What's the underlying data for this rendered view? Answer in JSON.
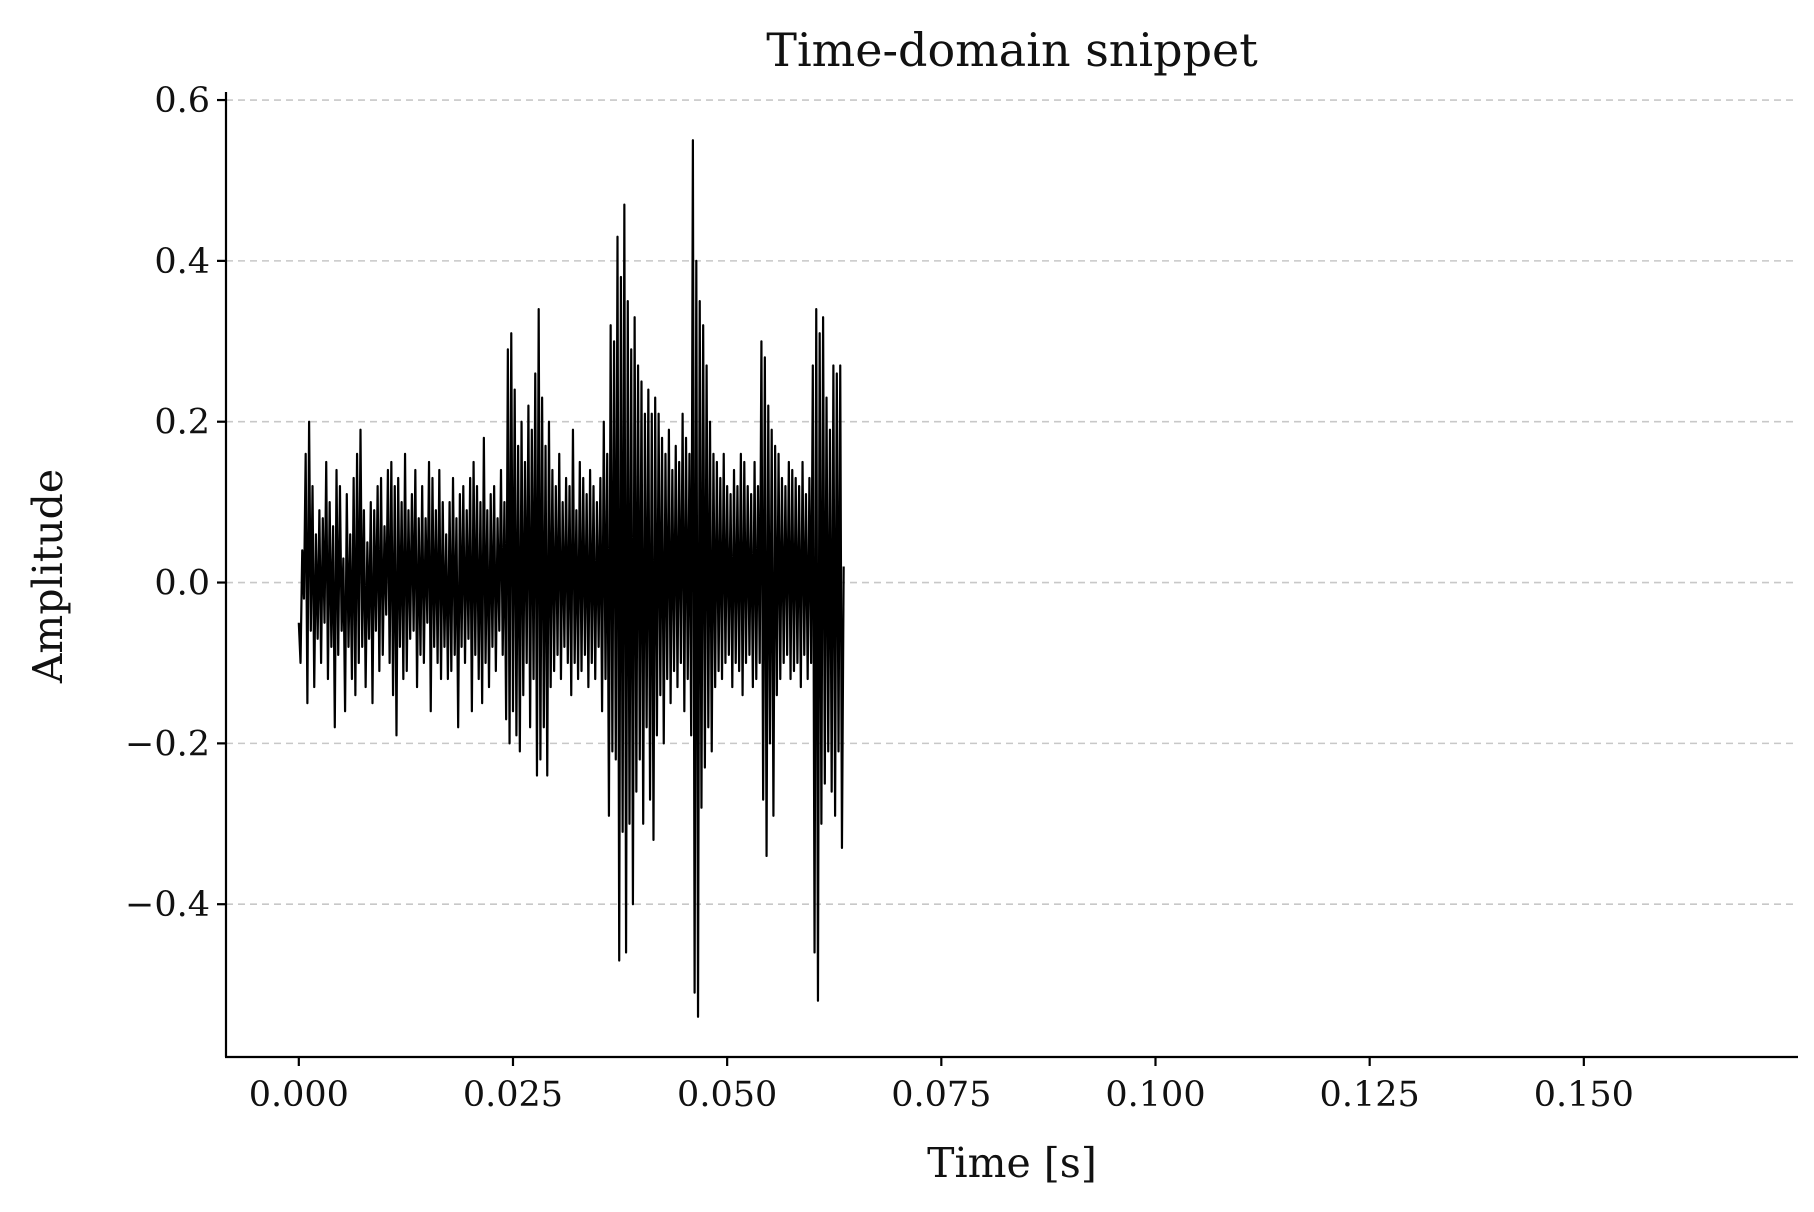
{
  "chart_data": {
    "type": "line",
    "title": "Time-domain snippet",
    "xlabel": "Time [s]",
    "ylabel": "Amplitude",
    "xlim": [
      -0.0085,
      0.175
    ],
    "ylim": [
      -0.59,
      0.61
    ],
    "x_ticks": [
      0.0,
      0.025,
      0.05,
      0.075,
      0.1,
      0.125,
      0.15
    ],
    "x_tick_labels": [
      "0.000",
      "0.025",
      "0.050",
      "0.075",
      "0.100",
      "0.125",
      "0.150"
    ],
    "y_ticks": [
      -0.4,
      -0.2,
      0.0,
      0.2,
      0.4,
      0.6
    ],
    "y_tick_labels": [
      "−0.4",
      "−0.2",
      "0.0",
      "0.2",
      "0.4",
      "0.6"
    ],
    "grid": "y-dashed",
    "color": "#000000",
    "series": [
      {
        "sample_interval": 0.0002,
        "y": [
          -0.05,
          -0.1,
          0.04,
          -0.02,
          0.16,
          -0.15,
          0.2,
          -0.06,
          0.12,
          -0.13,
          0.06,
          -0.07,
          0.09,
          -0.1,
          0.08,
          -0.05,
          0.15,
          -0.12,
          0.1,
          -0.08,
          0.07,
          -0.18,
          0.14,
          -0.09,
          0.12,
          -0.06,
          0.03,
          -0.16,
          0.11,
          -0.08,
          0.06,
          -0.12,
          0.13,
          -0.14,
          0.16,
          -0.1,
          0.19,
          -0.08,
          0.09,
          -0.13,
          0.05,
          -0.07,
          0.1,
          -0.15,
          0.09,
          -0.06,
          0.12,
          -0.11,
          0.13,
          -0.09,
          0.07,
          -0.04,
          0.14,
          -0.1,
          0.15,
          -0.14,
          0.12,
          -0.19,
          0.13,
          -0.08,
          0.1,
          -0.12,
          0.16,
          -0.11,
          0.09,
          -0.07,
          0.11,
          -0.06,
          0.14,
          -0.13,
          0.08,
          -0.09,
          0.12,
          -0.1,
          0.08,
          -0.05,
          0.15,
          -0.16,
          0.13,
          -0.08,
          0.09,
          -0.1,
          0.14,
          -0.12,
          0.1,
          -0.08,
          0.06,
          -0.12,
          0.1,
          -0.11,
          0.13,
          -0.09,
          0.08,
          -0.18,
          0.11,
          -0.08,
          0.12,
          -0.1,
          0.09,
          -0.07,
          0.13,
          -0.16,
          0.15,
          -0.09,
          0.12,
          -0.12,
          0.1,
          -0.15,
          0.18,
          -0.1,
          0.09,
          -0.13,
          0.11,
          -0.08,
          0.12,
          -0.11,
          0.08,
          -0.06,
          0.14,
          -0.09,
          0.1,
          -0.17,
          0.29,
          -0.2,
          0.31,
          -0.16,
          0.24,
          -0.19,
          0.17,
          -0.21,
          0.2,
          -0.14,
          0.15,
          -0.1,
          0.22,
          -0.18,
          0.19,
          -0.12,
          0.26,
          -0.24,
          0.34,
          -0.22,
          0.23,
          -0.18,
          0.17,
          -0.24,
          0.2,
          -0.13,
          0.14,
          -0.11,
          0.12,
          -0.09,
          0.16,
          -0.12,
          0.1,
          -0.08,
          0.13,
          -0.1,
          0.12,
          -0.14,
          0.19,
          -0.1,
          0.09,
          -0.12,
          0.15,
          -0.11,
          0.13,
          -0.09,
          0.11,
          -0.13,
          0.14,
          -0.1,
          0.12,
          -0.12,
          0.1,
          -0.08,
          0.13,
          -0.16,
          0.2,
          -0.12,
          0.16,
          -0.29,
          0.32,
          -0.21,
          0.3,
          -0.22,
          0.43,
          -0.47,
          0.38,
          -0.31,
          0.47,
          -0.46,
          0.35,
          -0.3,
          0.29,
          -0.4,
          0.33,
          -0.26,
          0.27,
          -0.22,
          0.25,
          -0.3,
          0.21,
          -0.18,
          0.24,
          -0.27,
          0.21,
          -0.32,
          0.23,
          -0.19,
          0.21,
          -0.14,
          0.18,
          -0.2,
          0.16,
          -0.12,
          0.19,
          -0.15,
          0.14,
          -0.11,
          0.17,
          -0.13,
          0.15,
          -0.1,
          0.21,
          -0.16,
          0.18,
          -0.12,
          0.16,
          -0.19,
          0.55,
          -0.51,
          0.4,
          -0.54,
          0.35,
          -0.28,
          0.32,
          -0.23,
          0.27,
          -0.18,
          0.2,
          -0.21,
          0.16,
          -0.13,
          0.15,
          -0.11,
          0.13,
          -0.12,
          0.16,
          -0.1,
          0.12,
          -0.09,
          0.11,
          -0.13,
          0.14,
          -0.1,
          0.12,
          -0.11,
          0.16,
          -0.14,
          0.15,
          -0.1,
          0.12,
          -0.09,
          0.11,
          -0.13,
          0.15,
          -0.12,
          0.12,
          -0.1,
          0.3,
          -0.27,
          0.28,
          -0.34,
          0.22,
          -0.2,
          0.19,
          -0.29,
          0.17,
          -0.14,
          0.16,
          -0.12,
          0.13,
          -0.1,
          0.12,
          -0.09,
          0.15,
          -0.12,
          0.14,
          -0.11,
          0.13,
          -0.1,
          0.12,
          -0.13,
          0.15,
          -0.09,
          0.11,
          -0.12,
          0.13,
          -0.1,
          0.27,
          -0.46,
          0.34,
          -0.52,
          0.31,
          -0.3,
          0.33,
          -0.25,
          0.23,
          -0.21,
          0.19,
          -0.26,
          0.27,
          -0.29,
          0.26,
          -0.21,
          0.27,
          -0.33,
          0.02
        ]
      }
    ]
  }
}
